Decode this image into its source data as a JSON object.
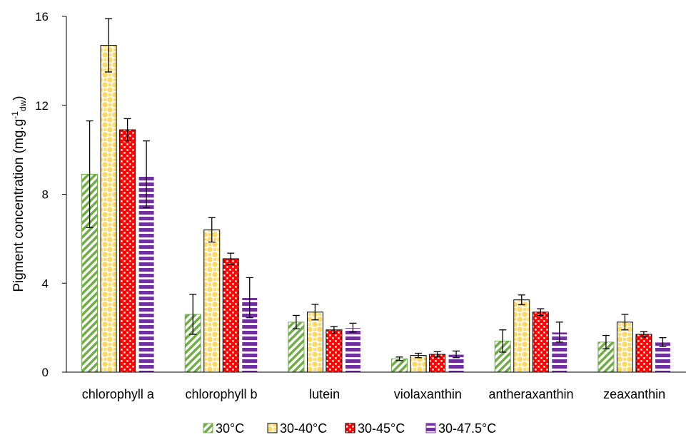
{
  "chart_data": {
    "type": "bar",
    "categories": [
      "chlorophyll a",
      "chlorophyll b",
      "lutein",
      "violaxanthin",
      "antheraxanthin",
      "zeaxanthin"
    ],
    "series": [
      {
        "name": "30°C",
        "color": "#70AD47",
        "pattern": "diagonal-stripes",
        "values": [
          8.9,
          2.6,
          2.25,
          0.6,
          1.4,
          1.35
        ],
        "errors": [
          2.4,
          0.9,
          0.3,
          0.08,
          0.5,
          0.3
        ]
      },
      {
        "name": "30-40°C",
        "color": "#FFD966",
        "pattern": "circles",
        "values": [
          14.7,
          6.4,
          2.7,
          0.75,
          3.25,
          2.25
        ],
        "errors": [
          1.2,
          0.55,
          0.35,
          0.1,
          0.22,
          0.35
        ]
      },
      {
        "name": "30-45°C",
        "color": "#FF0000",
        "pattern": "dots",
        "values": [
          10.9,
          5.1,
          1.9,
          0.8,
          2.7,
          1.7
        ],
        "errors": [
          0.5,
          0.25,
          0.15,
          0.12,
          0.15,
          0.12
        ]
      },
      {
        "name": "30-47.5°C",
        "color": "#7030A0",
        "pattern": "horizontal-stripes",
        "values": [
          8.9,
          3.35,
          2.0,
          0.8,
          1.8,
          1.35
        ],
        "errors": [
          1.5,
          0.9,
          0.2,
          0.15,
          0.45,
          0.2
        ]
      }
    ],
    "ylabel_main": "Pigment concentration (mg.g",
    "ylabel_sup": "-1",
    "ylabel_sub": "dw",
    "ylabel_close": ")",
    "yticks": [
      0,
      4,
      8,
      12,
      16
    ],
    "ylim": [
      0,
      16
    ],
    "grid": false,
    "legend_position": "bottom"
  }
}
